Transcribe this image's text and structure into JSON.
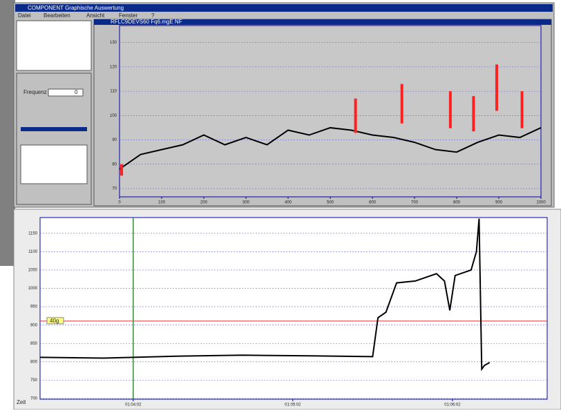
{
  "window": {
    "title": "COMPONENT Graphische Auswertung",
    "menu": [
      "Datei",
      "Bearbeiten",
      "Ansicht",
      "Fenster",
      "?"
    ]
  },
  "panel": {
    "field_label": "Frequenz",
    "field_value": "0"
  },
  "chart_data": [
    {
      "type": "line",
      "title": "RFLC9DEVS60 Fq6.mgE NF",
      "x": [
        0,
        50,
        100,
        150,
        200,
        250,
        300,
        350,
        400,
        450,
        500,
        550,
        600,
        650,
        700,
        750,
        800,
        850,
        900,
        950,
        1000
      ],
      "series": [
        {
          "color": "#000000",
          "values": [
            78,
            84,
            86,
            88,
            92,
            88,
            91,
            88,
            94,
            92,
            95,
            94,
            92,
            91,
            89,
            86,
            85,
            89,
            92,
            91,
            95
          ]
        },
        {
          "color": "#ff2020",
          "x": [
            5,
            560,
            670,
            785,
            840,
            895,
            955
          ],
          "values": [
            80,
            107,
            113,
            110,
            108,
            121,
            110
          ]
        }
      ],
      "xlim": [
        0,
        1000
      ],
      "xticks": [
        0,
        100,
        200,
        300,
        400,
        500,
        600,
        700,
        800,
        900,
        1000
      ],
      "ylim": [
        66.6,
        137
      ],
      "yticks": [
        70,
        80,
        90,
        100,
        110,
        120,
        130
      ],
      "grid": true
    },
    {
      "type": "line",
      "x_label": "Zeit",
      "threshold_label": "40g",
      "threshold": 911,
      "cursor_x": 62,
      "x": [
        27,
        51,
        77,
        103,
        129,
        152,
        154,
        157,
        161,
        168,
        176,
        179,
        181,
        183,
        189,
        191,
        192,
        193,
        194,
        196
      ],
      "series": [
        {
          "color": "#000000",
          "values": [
            812,
            810,
            815,
            818,
            816,
            814,
            920,
            935,
            1015,
            1020,
            1040,
            1020,
            940,
            1035,
            1050,
            1100,
            1190,
            780,
            790,
            798
          ]
        }
      ],
      "xlim": [
        27,
        217.6
      ],
      "xticks": [
        {
          "value": 62,
          "label": "01:04:02"
        },
        {
          "value": 122,
          "label": "01:05:02"
        },
        {
          "value": 182,
          "label": "01:06:02"
        }
      ],
      "ylim": [
        698,
        1193
      ],
      "yticks": [
        700,
        750,
        800,
        850,
        900,
        950,
        1000,
        1050,
        1100,
        1150
      ],
      "grid": true
    }
  ]
}
